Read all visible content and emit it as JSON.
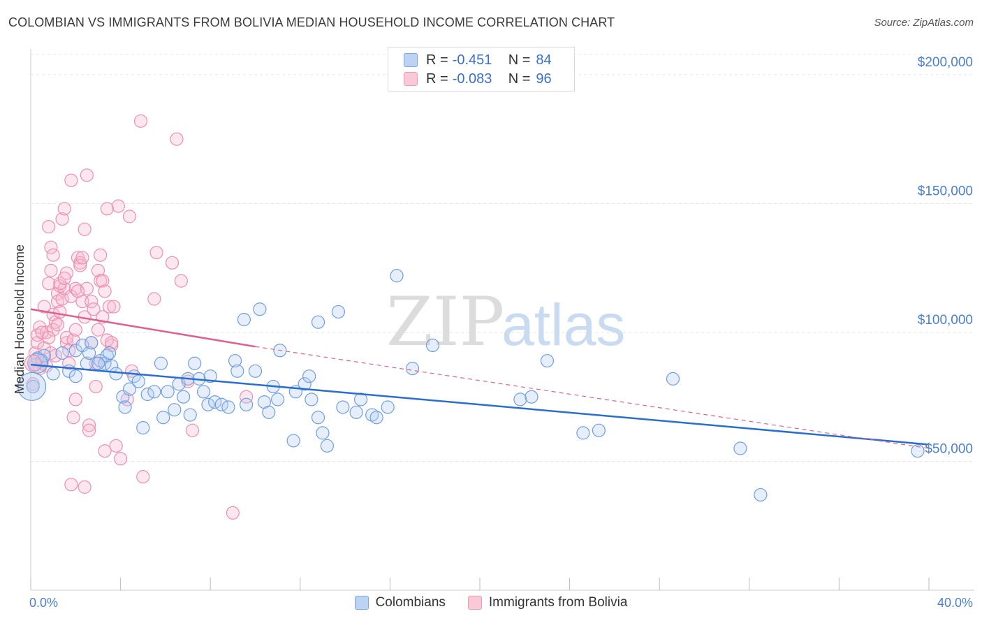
{
  "header": {
    "title": "COLOMBIAN VS IMMIGRANTS FROM BOLIVIA MEDIAN HOUSEHOLD INCOME CORRELATION CHART",
    "source": "Source: ZipAtlas.com"
  },
  "watermark": {
    "zip": "ZIP",
    "atlas": "atlas"
  },
  "legend_top": {
    "rows": [
      {
        "r_label": "R =",
        "r_value": "-0.451",
        "n_label": "N =",
        "n_value": "84"
      },
      {
        "r_label": "R =",
        "r_value": "-0.083",
        "n_label": "N =",
        "n_value": "96"
      }
    ]
  },
  "chart_data": {
    "type": "scatter",
    "title": "COLOMBIAN VS IMMIGRANTS FROM BOLIVIA MEDIAN HOUSEHOLD INCOME CORRELATION CHART",
    "xlabel": "",
    "ylabel": "Median Household Income",
    "xlim": [
      0,
      40
    ],
    "ylim": [
      0,
      210000
    ],
    "x_tick_labels": [
      "0.0%",
      "40.0%"
    ],
    "y_ticks": [
      50000,
      100000,
      150000,
      200000
    ],
    "y_tick_labels": [
      "$50,000",
      "$100,000",
      "$150,000",
      "$200,000"
    ],
    "grid": true,
    "legend_position": "bottom",
    "colors": {
      "blue": "#7aa7e6",
      "blue_line": "#2a6ed0",
      "pink": "#f09ab8",
      "pink_line": "#e0608e"
    },
    "series": [
      {
        "name": "Colombians",
        "color": "#7aa7e6",
        "trend": {
          "x": [
            0,
            40
          ],
          "y": [
            87500,
            56500
          ],
          "style": "solid"
        },
        "points": [
          [
            0.1,
            79000
          ],
          [
            0.2,
            87500
          ],
          [
            0.3,
            90000
          ],
          [
            0.5,
            89000
          ],
          [
            0.6,
            91000
          ],
          [
            1.0,
            84000
          ],
          [
            1.4,
            92000
          ],
          [
            1.7,
            85000
          ],
          [
            2.0,
            93000
          ],
          [
            2.3,
            95000
          ],
          [
            2.5,
            88000
          ],
          [
            2.6,
            92000
          ],
          [
            2.7,
            96000
          ],
          [
            3.1,
            89000
          ],
          [
            3.3,
            88000
          ],
          [
            3.4,
            91000
          ],
          [
            3.5,
            92000
          ],
          [
            3.6,
            87000
          ],
          [
            3.8,
            84000
          ],
          [
            4.1,
            75000
          ],
          [
            4.2,
            71000
          ],
          [
            4.4,
            78000
          ],
          [
            4.6,
            83000
          ],
          [
            4.8,
            81000
          ],
          [
            5.0,
            63000
          ],
          [
            5.2,
            76000
          ],
          [
            5.5,
            77000
          ],
          [
            5.8,
            88000
          ],
          [
            5.9,
            67000
          ],
          [
            6.1,
            77000
          ],
          [
            6.4,
            70000
          ],
          [
            6.6,
            80000
          ],
          [
            6.8,
            75000
          ],
          [
            7.0,
            82000
          ],
          [
            7.1,
            68000
          ],
          [
            7.3,
            88000
          ],
          [
            7.5,
            82000
          ],
          [
            7.7,
            77000
          ],
          [
            7.9,
            72000
          ],
          [
            8.0,
            83000
          ],
          [
            8.2,
            73000
          ],
          [
            8.5,
            72000
          ],
          [
            8.8,
            71000
          ],
          [
            9.1,
            89000
          ],
          [
            9.2,
            85000
          ],
          [
            9.6,
            72000
          ],
          [
            10.0,
            85000
          ],
          [
            10.4,
            73000
          ],
          [
            10.6,
            69000
          ],
          [
            10.8,
            79000
          ],
          [
            11.0,
            74000
          ],
          [
            11.1,
            93000
          ],
          [
            11.7,
            58000
          ],
          [
            11.8,
            77000
          ],
          [
            12.2,
            80000
          ],
          [
            12.4,
            83000
          ],
          [
            12.5,
            74000
          ],
          [
            12.8,
            67000
          ],
          [
            13.0,
            61000
          ],
          [
            13.2,
            56000
          ],
          [
            13.9,
            71000
          ],
          [
            14.5,
            69000
          ],
          [
            14.7,
            74000
          ],
          [
            15.2,
            68000
          ],
          [
            15.4,
            67000
          ],
          [
            15.9,
            71000
          ],
          [
            16.3,
            122000
          ],
          [
            17.0,
            86000
          ],
          [
            17.9,
            95000
          ],
          [
            21.8,
            74000
          ],
          [
            22.3,
            75000
          ],
          [
            23.0,
            89000
          ],
          [
            24.6,
            61000
          ],
          [
            25.3,
            62000
          ],
          [
            28.6,
            82000
          ],
          [
            31.6,
            55000
          ],
          [
            32.5,
            37000
          ],
          [
            39.5,
            54000
          ],
          [
            12.8,
            104000
          ],
          [
            13.7,
            108000
          ],
          [
            9.5,
            105000
          ],
          [
            10.2,
            109000
          ],
          [
            2.0,
            83000
          ],
          [
            3.0,
            88000
          ]
        ]
      },
      {
        "name": "Immigrants from Bolivia",
        "color": "#f09ab8",
        "trend": {
          "x": [
            0,
            10
          ],
          "y": [
            109000,
            94500
          ],
          "style": "solid",
          "dashed_extension_to": [
            40,
            55000
          ]
        },
        "points": [
          [
            0.1,
            80000
          ],
          [
            0.2,
            92000
          ],
          [
            0.3,
            96000
          ],
          [
            0.3,
            99000
          ],
          [
            0.4,
            102000
          ],
          [
            0.5,
            88000
          ],
          [
            0.6,
            94000
          ],
          [
            0.7,
            100000
          ],
          [
            0.8,
            119000
          ],
          [
            0.8,
            141000
          ],
          [
            0.9,
            133000
          ],
          [
            0.9,
            124000
          ],
          [
            1.0,
            130000
          ],
          [
            1.0,
            107000
          ],
          [
            1.1,
            104000
          ],
          [
            1.2,
            115000
          ],
          [
            1.2,
            112000
          ],
          [
            1.3,
            118000
          ],
          [
            1.3,
            108000
          ],
          [
            1.4,
            113000
          ],
          [
            1.4,
            144000
          ],
          [
            1.5,
            148000
          ],
          [
            1.5,
            117000
          ],
          [
            1.6,
            123000
          ],
          [
            1.6,
            96000
          ],
          [
            1.7,
            88000
          ],
          [
            1.8,
            159000
          ],
          [
            1.8,
            114000
          ],
          [
            1.9,
            67000
          ],
          [
            2.0,
            74000
          ],
          [
            2.0,
            117000
          ],
          [
            2.1,
            129000
          ],
          [
            2.2,
            127000
          ],
          [
            2.2,
            126000
          ],
          [
            2.3,
            112000
          ],
          [
            2.4,
            140000
          ],
          [
            2.4,
            106000
          ],
          [
            2.5,
            161000
          ],
          [
            2.5,
            117000
          ],
          [
            2.6,
            64000
          ],
          [
            2.6,
            62000
          ],
          [
            2.7,
            112000
          ],
          [
            2.8,
            109000
          ],
          [
            2.9,
            79000
          ],
          [
            3.0,
            101000
          ],
          [
            3.0,
            124000
          ],
          [
            3.1,
            130000
          ],
          [
            3.1,
            120000
          ],
          [
            3.2,
            120000
          ],
          [
            3.2,
            106000
          ],
          [
            3.3,
            116000
          ],
          [
            3.3,
            54000
          ],
          [
            3.4,
            148000
          ],
          [
            3.5,
            110000
          ],
          [
            3.6,
            95000
          ],
          [
            3.7,
            110000
          ],
          [
            3.8,
            56000
          ],
          [
            3.9,
            149000
          ],
          [
            4.0,
            51000
          ],
          [
            4.3,
            74000
          ],
          [
            4.4,
            145000
          ],
          [
            4.5,
            85000
          ],
          [
            4.9,
            182000
          ],
          [
            5.0,
            44000
          ],
          [
            5.5,
            113000
          ],
          [
            5.6,
            131000
          ],
          [
            6.3,
            127000
          ],
          [
            6.5,
            175000
          ],
          [
            6.7,
            120000
          ],
          [
            7.0,
            81000
          ],
          [
            7.2,
            62000
          ],
          [
            9.6,
            75000
          ],
          [
            9.0,
            30000
          ],
          [
            1.8,
            41000
          ],
          [
            2.4,
            40000
          ],
          [
            1.6,
            98000
          ],
          [
            1.0,
            101000
          ],
          [
            0.5,
            100000
          ],
          [
            0.7,
            87000
          ],
          [
            0.9,
            92000
          ],
          [
            1.1,
            91000
          ],
          [
            1.3,
            119000
          ],
          [
            1.9,
            97000
          ],
          [
            2.1,
            116000
          ],
          [
            2.3,
            129000
          ],
          [
            2.7,
            96000
          ],
          [
            2.9,
            88000
          ],
          [
            3.4,
            97000
          ],
          [
            3.6,
            96000
          ],
          [
            0.4,
            86000
          ],
          [
            0.6,
            110000
          ],
          [
            0.8,
            98000
          ],
          [
            1.2,
            103000
          ],
          [
            1.5,
            121000
          ],
          [
            1.7,
            93000
          ],
          [
            2.0,
            101000
          ]
        ]
      }
    ]
  }
}
